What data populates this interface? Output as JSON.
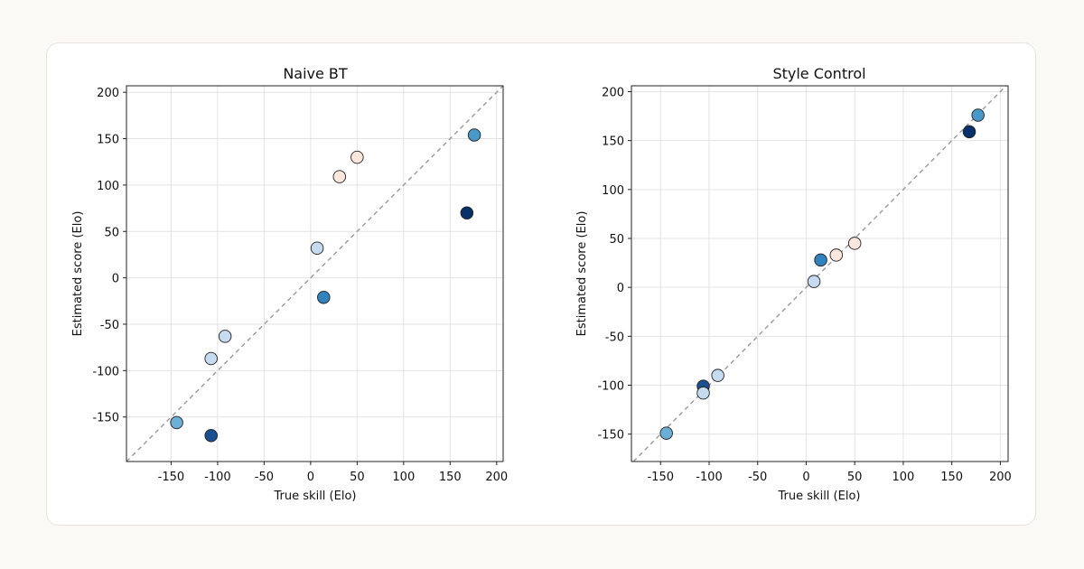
{
  "colors": {
    "grid": "#e3e3e3",
    "diagonal": "#999999",
    "point_stroke": "#222222"
  },
  "chart_data": [
    {
      "type": "scatter",
      "title": "Naive BT",
      "xlabel": "True skill (Elo)",
      "ylabel": "Estimated score (Elo)",
      "xlim": [
        -198,
        207
      ],
      "ylim": [
        -198,
        207
      ],
      "xticks": [
        -150,
        -100,
        -50,
        0,
        50,
        100,
        150,
        200
      ],
      "yticks": [
        -150,
        -100,
        -50,
        0,
        50,
        100,
        150,
        200
      ],
      "grid": true,
      "reference_line": "y = x",
      "points": [
        {
          "x": -144,
          "y": -156,
          "color": "#6baed6"
        },
        {
          "x": -107,
          "y": -170,
          "color": "#1c4f8f"
        },
        {
          "x": -107,
          "y": -87,
          "color": "#c6dbef"
        },
        {
          "x": -92,
          "y": -63,
          "color": "#c6dbef"
        },
        {
          "x": 7,
          "y": 32,
          "color": "#c6dbef"
        },
        {
          "x": 14,
          "y": -21,
          "color": "#3182bd"
        },
        {
          "x": 31,
          "y": 109,
          "color": "#fde6dc"
        },
        {
          "x": 50,
          "y": 130,
          "color": "#fde6dc"
        },
        {
          "x": 168,
          "y": 70,
          "color": "#08306b"
        },
        {
          "x": 176,
          "y": 154,
          "color": "#4a98c9"
        }
      ]
    },
    {
      "type": "scatter",
      "title": "Style Control",
      "xlabel": "True skill (Elo)",
      "ylabel": "Estimated score (Elo)",
      "xlim": [
        -180,
        208
      ],
      "ylim": [
        -178,
        206
      ],
      "xticks": [
        -150,
        -100,
        -50,
        0,
        50,
        100,
        150,
        200
      ],
      "yticks": [
        -150,
        -100,
        -50,
        0,
        50,
        100,
        150,
        200
      ],
      "grid": true,
      "reference_line": "y = x",
      "points": [
        {
          "x": -144,
          "y": -149,
          "color": "#6baed6"
        },
        {
          "x": -106,
          "y": -101,
          "color": "#1c4f8f"
        },
        {
          "x": -106,
          "y": -108,
          "color": "#c6dbef"
        },
        {
          "x": -91,
          "y": -90,
          "color": "#c6dbef"
        },
        {
          "x": 8,
          "y": 6,
          "color": "#c6dbef"
        },
        {
          "x": 15,
          "y": 28,
          "color": "#3182bd"
        },
        {
          "x": 31,
          "y": 33,
          "color": "#fde6dc"
        },
        {
          "x": 50,
          "y": 45,
          "color": "#fde6dc"
        },
        {
          "x": 168,
          "y": 159,
          "color": "#08306b"
        },
        {
          "x": 177,
          "y": 176,
          "color": "#4a98c9"
        }
      ]
    }
  ]
}
